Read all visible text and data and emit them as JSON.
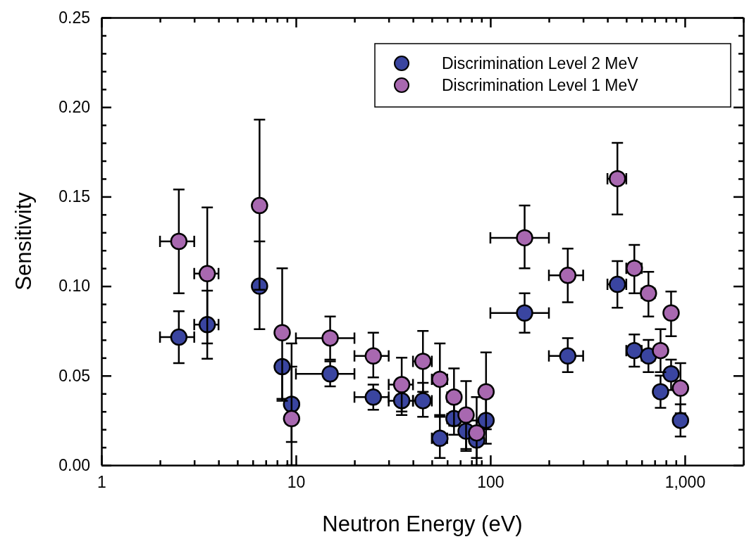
{
  "chart_data": {
    "type": "scatter",
    "xlabel": "Neutron Energy  (eV)",
    "ylabel": "Sensitivity",
    "log": "x",
    "marker": "circle",
    "legend": "top right",
    "grid": false,
    "x": [
      2.5,
      3.5,
      6.5,
      8.5,
      9.5,
      15,
      25,
      35,
      45,
      55,
      65,
      75,
      85,
      95,
      150,
      250,
      450,
      550,
      650,
      750,
      850,
      950
    ],
    "xlim": [
      1,
      2000
    ],
    "xticks": [
      {
        "value": 1,
        "label": "1"
      },
      {
        "value": 2,
        "label": null
      },
      {
        "value": 3,
        "label": null
      },
      {
        "value": 4,
        "label": null
      },
      {
        "value": 5,
        "label": null
      },
      {
        "value": 6,
        "label": null
      },
      {
        "value": 7,
        "label": null
      },
      {
        "value": 8,
        "label": null
      },
      {
        "value": 9,
        "label": null
      },
      {
        "value": 10,
        "label": "10"
      },
      {
        "value": 20,
        "label": null
      },
      {
        "value": 30,
        "label": null
      },
      {
        "value": 40,
        "label": null
      },
      {
        "value": 50,
        "label": null
      },
      {
        "value": 60,
        "label": null
      },
      {
        "value": 70,
        "label": null
      },
      {
        "value": 80,
        "label": null
      },
      {
        "value": 90,
        "label": null
      },
      {
        "value": 100,
        "label": "100"
      },
      {
        "value": 200,
        "label": null
      },
      {
        "value": 300,
        "label": null
      },
      {
        "value": 400,
        "label": null
      },
      {
        "value": 500,
        "label": null
      },
      {
        "value": 600,
        "label": null
      },
      {
        "value": 700,
        "label": null
      },
      {
        "value": 800,
        "label": null
      },
      {
        "value": 900,
        "label": null
      },
      {
        "value": 1000,
        "label": "1,000"
      },
      {
        "value": 2000,
        "label": null
      }
    ],
    "ylim": [
      0,
      0.25
    ],
    "yticks": [
      {
        "value": 0,
        "label": "0.00"
      },
      {
        "value": 0.01,
        "label": null
      },
      {
        "value": 0.02,
        "label": null
      },
      {
        "value": 0.03,
        "label": null
      },
      {
        "value": 0.04,
        "label": null
      },
      {
        "value": 0.05,
        "label": "0.05"
      },
      {
        "value": 0.06,
        "label": null
      },
      {
        "value": 0.07,
        "label": null
      },
      {
        "value": 0.08,
        "label": null
      },
      {
        "value": 0.09,
        "label": null
      },
      {
        "value": 0.1,
        "label": "0.10"
      },
      {
        "value": 0.11,
        "label": null
      },
      {
        "value": 0.12,
        "label": null
      },
      {
        "value": 0.13,
        "label": null
      },
      {
        "value": 0.14,
        "label": null
      },
      {
        "value": 0.15,
        "label": "0.15"
      },
      {
        "value": 0.16,
        "label": null
      },
      {
        "value": 0.17,
        "label": null
      },
      {
        "value": 0.18,
        "label": null
      },
      {
        "value": 0.19,
        "label": null
      },
      {
        "value": 0.2,
        "label": "0.20"
      },
      {
        "value": 0.21,
        "label": null
      },
      {
        "value": 0.22,
        "label": null
      },
      {
        "value": 0.23,
        "label": null
      },
      {
        "value": 0.24,
        "label": null
      },
      {
        "value": 0.25,
        "label": "0.25"
      }
    ],
    "series": [
      {
        "name": "Discrimination Level 2 MeV",
        "color": "#3a45a0",
        "values": [
          0.0715,
          0.0785,
          0.1,
          0.055,
          0.034,
          0.051,
          0.038,
          0.036,
          0.036,
          0.015,
          0.026,
          0.019,
          0.014,
          0.025,
          0.085,
          0.061,
          0.101,
          0.064,
          0.061,
          0.041,
          0.051,
          0.025
        ],
        "errors": [
          [
            0.057,
            0.086
          ],
          [
            0.0595,
            0.0975
          ],
          [
            0.076,
            0.125
          ],
          [
            0.037,
            0.055
          ],
          [
            0.013,
            0.055
          ],
          [
            0.044,
            0.058
          ],
          [
            0.031,
            0.045
          ],
          [
            0.028,
            0.036
          ],
          [
            0.027,
            0.046
          ],
          [
            0.004,
            0.027
          ],
          [
            0.017,
            0.035
          ],
          [
            0.009,
            0.019
          ],
          [
            0.004,
            0.025
          ],
          [
            0.012,
            0.038
          ],
          [
            0.074,
            0.096
          ],
          [
            0.052,
            0.071
          ],
          [
            0.088,
            0.114
          ],
          [
            0.055,
            0.073
          ],
          [
            0.052,
            0.07
          ],
          [
            0.032,
            0.05
          ],
          [
            0.042,
            0.059
          ],
          [
            0.016,
            0.034
          ]
        ],
        "xerrors": [
          [
            2,
            3
          ],
          [
            3,
            4
          ],
          null,
          null,
          null,
          [
            10,
            20
          ],
          [
            20,
            30
          ],
          [
            30,
            40
          ],
          [
            40,
            50
          ],
          [
            50,
            60
          ],
          [
            60,
            70
          ],
          [
            70,
            80
          ],
          null,
          null,
          [
            100,
            200
          ],
          [
            200,
            300
          ],
          [
            400,
            500
          ],
          [
            500,
            600
          ],
          [
            600,
            700
          ],
          [
            700,
            800
          ],
          null,
          [
            900,
            1000
          ]
        ]
      },
      {
        "name": "Discrimination Level 1 MeV",
        "color": "#a868b0",
        "values": [
          0.125,
          0.107,
          0.145,
          0.074,
          0.026,
          0.071,
          0.061,
          0.045,
          0.058,
          0.048,
          0.038,
          0.028,
          0.018,
          0.041,
          0.127,
          0.106,
          0.16,
          0.11,
          0.096,
          0.064,
          0.085,
          0.043
        ],
        "errors": [
          [
            0.096,
            0.154
          ],
          [
            0.068,
            0.144
          ],
          [
            0.098,
            0.193
          ],
          [
            0.036,
            0.11
          ],
          [
            0.0,
            0.068
          ],
          [
            0.059,
            0.083
          ],
          [
            0.049,
            0.074
          ],
          [
            0.03,
            0.06
          ],
          [
            0.041,
            0.075
          ],
          [
            0.028,
            0.068
          ],
          [
            0.022,
            0.054
          ],
          [
            0.008,
            0.047
          ],
          [
            0.0,
            0.038
          ],
          [
            0.02,
            0.063
          ],
          [
            0.11,
            0.145
          ],
          [
            0.091,
            0.121
          ],
          [
            0.14,
            0.18
          ],
          [
            0.096,
            0.123
          ],
          [
            0.083,
            0.108
          ],
          [
            0.052,
            0.076
          ],
          [
            0.072,
            0.097
          ],
          [
            0.029,
            0.057
          ]
        ],
        "xerrors": [
          [
            2,
            3
          ],
          [
            3,
            4
          ],
          null,
          null,
          null,
          [
            10,
            20
          ],
          [
            20,
            30
          ],
          [
            30,
            40
          ],
          [
            40,
            50
          ],
          [
            50,
            60
          ],
          [
            60,
            70
          ],
          [
            70,
            80
          ],
          null,
          [
            90,
            100
          ],
          [
            100,
            200
          ],
          [
            200,
            300
          ],
          [
            400,
            500
          ],
          [
            500,
            600
          ],
          [
            600,
            700
          ],
          [
            700,
            800
          ],
          null,
          null
        ]
      }
    ]
  }
}
